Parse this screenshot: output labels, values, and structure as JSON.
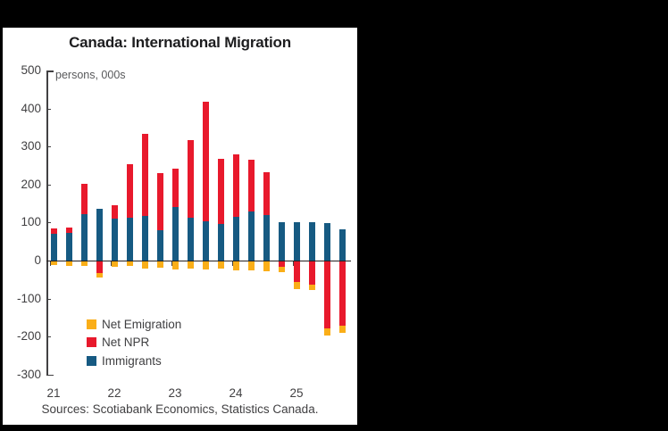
{
  "panel": {
    "background": "#ffffff"
  },
  "chart": {
    "title": "Canada: International Migration",
    "unit_label": "persons, 000s",
    "source_note": "Sources: Scotiabank Economics, Statistics Canada."
  },
  "chart_data": {
    "type": "bar",
    "stacked": true,
    "title": "Canada: International Migration",
    "ylabel": "persons, 000s",
    "categories": [
      "2021Q1",
      "2021Q2",
      "2021Q3",
      "2021Q4",
      "2022Q1",
      "2022Q2",
      "2022Q3",
      "2022Q4",
      "2023Q1",
      "2023Q2",
      "2023Q3",
      "2023Q4",
      "2024Q1",
      "2024Q2",
      "2024Q3",
      "2024Q4",
      "2025Q1",
      "2025Q2",
      "2025Q3",
      "2025Q4"
    ],
    "series": [
      {
        "name": "Net Emigration",
        "color": "#FAAE18",
        "values": [
          -10,
          -11,
          -12,
          -12,
          -13,
          -11,
          -19,
          -17,
          -22,
          -19,
          -21,
          -18,
          -24,
          -23,
          -26,
          -13,
          -18,
          -12,
          -21,
          -17
        ]
      },
      {
        "name": "Net NPR",
        "color": "#E8192C",
        "values": [
          14,
          14,
          80,
          -30,
          36,
          140,
          215,
          152,
          101,
          206,
          314,
          170,
          164,
          137,
          112,
          -15,
          -55,
          -62,
          -175,
          -170
        ]
      },
      {
        "name": "Immigrants",
        "color": "#165A82",
        "values": [
          70,
          73,
          121,
          136,
          110,
          113,
          118,
          79,
          141,
          112,
          104,
          97,
          116,
          129,
          120,
          101,
          101,
          101,
          99,
          81
        ]
      }
    ],
    "stack_order": [
      "Immigrants",
      "Net NPR",
      "Net Emigration"
    ],
    "ylim": [
      -300,
      500
    ],
    "yticks": [
      500,
      400,
      300,
      200,
      100,
      0,
      -100,
      -200,
      -300
    ],
    "xtick_labels": [
      "21",
      "22",
      "23",
      "24",
      "25"
    ],
    "xtick_every": 4,
    "legend_position": "lower-left",
    "grid": false
  }
}
